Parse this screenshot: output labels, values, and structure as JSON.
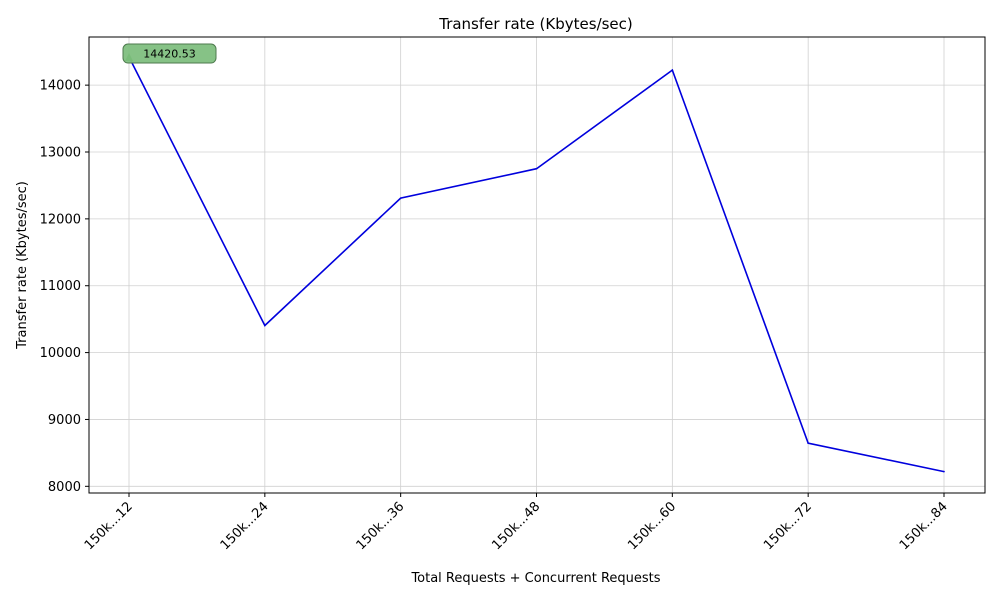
{
  "chart_data": {
    "type": "line",
    "title": "Transfer rate (Kbytes/sec)",
    "xlabel": "Total Requests + Concurrent Requests",
    "ylabel": "Transfer rate (Kbytes/sec)",
    "categories": [
      "150k...12",
      "150k...24",
      "150k...36",
      "150k...48",
      "150k...60",
      "150k...72",
      "150k...84"
    ],
    "series": [
      {
        "values": [
          14420.53,
          10405,
          12310,
          12750,
          14225,
          8645,
          8220
        ],
        "color": "#0000dd"
      }
    ],
    "ylim": [
      7900,
      14720
    ],
    "yticks": [
      8000,
      9000,
      10000,
      11000,
      12000,
      13000,
      14000
    ],
    "grid": true,
    "annotation": {
      "text": "14420.53",
      "category_index": 0,
      "value": 14420.53,
      "box_color": "#7fbf7f",
      "marker_color": "#008000"
    }
  }
}
